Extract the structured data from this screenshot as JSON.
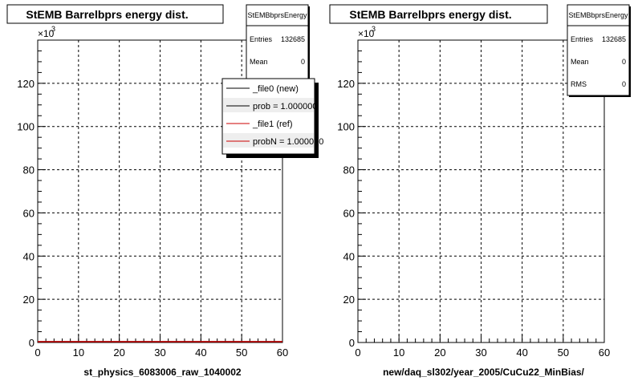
{
  "chart_data": [
    {
      "type": "line",
      "title": "StEMB Barrelbprs energy dist.",
      "xlabel": "st_physics_6083006_raw_1040002",
      "ylabel": "",
      "xlim": [
        0,
        60
      ],
      "ylim": [
        0,
        140000
      ],
      "x_ticks": [
        "0",
        "10",
        "20",
        "30",
        "40",
        "50",
        "60"
      ],
      "y_ticks": [
        "0",
        "20",
        "40",
        "60",
        "80",
        "100",
        "120"
      ],
      "y_multiplier": "×10",
      "y_multiplier_exp": "3",
      "grid": true,
      "series": [
        {
          "name": "_file0 (new)",
          "color": "#000000",
          "x": [
            0,
            60
          ],
          "y": [
            0,
            0
          ]
        },
        {
          "name": "_file1 (ref)",
          "color": "#cc0000",
          "x": [
            0,
            60
          ],
          "y": [
            0,
            0
          ]
        }
      ],
      "stats_box": {
        "name": "StEMBbprsEnergy",
        "entries_label": "Entries",
        "entries_value": "132685",
        "mean_label": "Mean",
        "mean_value": "0"
      },
      "legend": {
        "placement": "top-right",
        "entries": [
          {
            "label": "_file0 (new)",
            "color": "#000000"
          },
          {
            "label": "prob = 1.000000",
            "color": "#000000"
          },
          {
            "label": "_file1 (ref)",
            "color": "#cc0000"
          },
          {
            "label": "probN = 1.000000",
            "color": "#cc0000"
          }
        ]
      }
    },
    {
      "type": "line",
      "title": "StEMB Barrelbprs energy dist.",
      "xlabel": "new/daq_sl302/year_2005/CuCu22_MinBias/",
      "ylabel": "",
      "xlim": [
        0,
        60
      ],
      "ylim": [
        0,
        140000
      ],
      "x_ticks": [
        "0",
        "10",
        "20",
        "30",
        "40",
        "50",
        "60"
      ],
      "y_ticks": [
        "0",
        "20",
        "40",
        "60",
        "80",
        "100",
        "120"
      ],
      "y_multiplier": "×10",
      "y_multiplier_exp": "3",
      "grid": true,
      "series": [],
      "stats_box": {
        "name": "StEMBbprsEnergy",
        "entries_label": "Entries",
        "entries_value": "132685",
        "mean_label": "Mean",
        "mean_value": "0",
        "rms_label": "RMS",
        "rms_value": "0"
      }
    }
  ]
}
